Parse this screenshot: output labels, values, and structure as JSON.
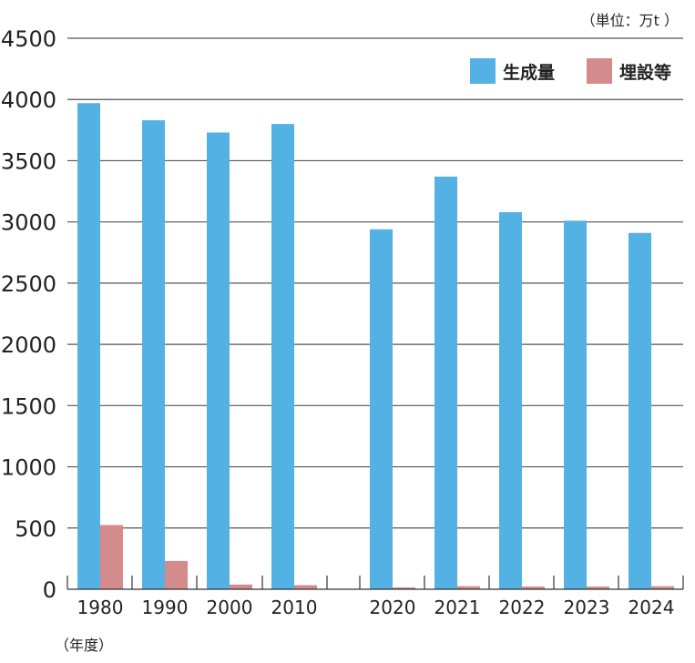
{
  "chart_data": {
    "type": "bar",
    "unit_label": "（単位：万t ）",
    "xlabel": "（年度）",
    "ylabel": "",
    "ylim": [
      0,
      4500
    ],
    "yticks": [
      0,
      500,
      1000,
      1500,
      2000,
      2500,
      3000,
      3500,
      4000,
      4500
    ],
    "grid": true,
    "legend_position": "top-right",
    "categories": [
      "1980",
      "1990",
      "2000",
      "2010",
      "2020",
      "2021",
      "2022",
      "2023",
      "2024"
    ],
    "series": [
      {
        "name": "生成量",
        "color": "#54b1e4",
        "values": [
          3970,
          3830,
          3730,
          3800,
          2940,
          3370,
          3080,
          3010,
          2910
        ]
      },
      {
        "name": "埋設等",
        "color": "#d48b8b",
        "values": [
          524,
          231,
          38,
          33,
          15,
          25,
          22,
          22,
          25
        ]
      }
    ]
  }
}
